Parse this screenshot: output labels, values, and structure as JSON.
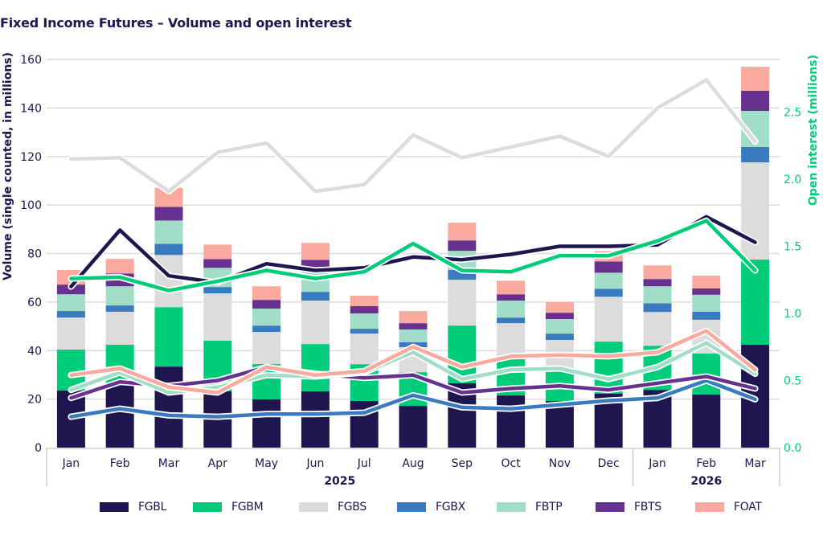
{
  "title": "Fixed Income Futures – Volume and open interest",
  "chart_data": {
    "type": "bar+line",
    "title": "Fixed Income Futures – Volume and open interest",
    "categories": [
      "Jan",
      "Feb",
      "Mar",
      "Apr",
      "May",
      "Jun",
      "Jul",
      "Aug",
      "Sep",
      "Oct",
      "Nov",
      "Dec",
      "Jan",
      "Feb",
      "Mar"
    ],
    "groups": [
      {
        "label": "2025",
        "count": 12
      },
      {
        "label": "2026",
        "count": 3
      }
    ],
    "ylabel": "Volume (single counted, in millions)",
    "ylim": [
      0,
      160
    ],
    "yticks": [
      "0",
      "20",
      "40",
      "60",
      "80",
      "100",
      "120",
      "140",
      "160"
    ],
    "y2label": "Open interest (millions)",
    "y2lim": [
      0,
      2.892
    ],
    "y2ticks": [
      "0.0",
      "0.5",
      "1.0",
      "1.5",
      "2.0",
      "2.5"
    ],
    "grid": true,
    "legend_position": "bottom",
    "series": [
      {
        "name": "FGBL",
        "color": "#1f1650",
        "volume": [
          23.5,
          26.0,
          33.4,
          23.2,
          19.9,
          23.2,
          19.2,
          17.2,
          26.5,
          21.5,
          19.2,
          22.2,
          23.8,
          21.9,
          42.4
        ],
        "open_interest": [
          1.2,
          1.62,
          1.28,
          1.23,
          1.37,
          1.32,
          1.34,
          1.42,
          1.4,
          1.44,
          1.5,
          1.5,
          1.51,
          1.72,
          1.53
        ]
      },
      {
        "name": "FGBM",
        "color": "#00cc7a",
        "volume": [
          16.9,
          16.4,
          24.5,
          20.9,
          14.6,
          19.5,
          15.2,
          13.9,
          23.8,
          15.9,
          13.6,
          21.5,
          18.2,
          16.9,
          35.1
        ],
        "open_interest": [
          1.26,
          1.27,
          1.17,
          1.24,
          1.32,
          1.26,
          1.31,
          1.52,
          1.32,
          1.31,
          1.43,
          1.43,
          1.54,
          1.69,
          1.32
        ]
      },
      {
        "name": "FGBS",
        "color": "#dcdcdc",
        "volume": [
          13.2,
          13.6,
          21.5,
          19.5,
          13.2,
          17.9,
          12.6,
          10.3,
          18.9,
          13.9,
          11.6,
          18.5,
          13.9,
          13.9,
          40.1
        ],
        "open_interest": [
          2.15,
          2.16,
          1.91,
          2.2,
          2.27,
          1.91,
          1.96,
          2.33,
          2.16,
          2.24,
          2.32,
          2.17,
          2.53,
          2.74,
          2.28
        ]
      },
      {
        "name": "FGBX",
        "color": "#3a7bbf",
        "volume": [
          2.7,
          2.6,
          4.6,
          2.6,
          2.6,
          3.6,
          2.0,
          2.0,
          4.0,
          2.3,
          2.6,
          3.3,
          3.6,
          3.3,
          6.3
        ],
        "open_interest": [
          0.23,
          0.29,
          0.24,
          0.23,
          0.25,
          0.25,
          0.26,
          0.39,
          0.3,
          0.29,
          0.32,
          0.35,
          0.37,
          0.5,
          0.36
        ]
      },
      {
        "name": "FBTP",
        "color": "#a2ddc7",
        "volume": [
          6.9,
          7.9,
          9.6,
          7.9,
          7.0,
          9.9,
          6.3,
          5.3,
          7.9,
          7.0,
          6.0,
          6.6,
          7.0,
          7.0,
          14.9
        ],
        "open_interest": [
          0.43,
          0.56,
          0.41,
          0.45,
          0.54,
          0.53,
          0.56,
          0.71,
          0.51,
          0.58,
          0.59,
          0.51,
          0.6,
          0.78,
          0.55
        ]
      },
      {
        "name": "FBTS",
        "color": "#66318f",
        "volume": [
          4.0,
          5.3,
          5.6,
          3.6,
          3.6,
          3.3,
          3.0,
          2.6,
          4.3,
          2.6,
          2.6,
          4.6,
          3.0,
          2.6,
          8.3
        ],
        "open_interest": [
          0.37,
          0.49,
          0.46,
          0.5,
          0.6,
          0.55,
          0.52,
          0.54,
          0.41,
          0.44,
          0.46,
          0.43,
          0.48,
          0.53,
          0.44
        ]
      },
      {
        "name": "FOAT",
        "color": "#faa99e",
        "volume": [
          6.0,
          6.0,
          7.9,
          6.0,
          5.6,
          7.0,
          4.3,
          5.0,
          7.3,
          5.6,
          4.3,
          4.3,
          5.6,
          5.3,
          9.9
        ],
        "open_interest": [
          0.54,
          0.59,
          0.45,
          0.41,
          0.6,
          0.54,
          0.57,
          0.75,
          0.6,
          0.68,
          0.69,
          0.68,
          0.71,
          0.87,
          0.58
        ]
      }
    ],
    "line_draw_order": [
      "FGBX",
      "FBTS",
      "FBTP",
      "FOAT",
      "FGBS",
      "FGBL",
      "FGBM"
    ]
  }
}
